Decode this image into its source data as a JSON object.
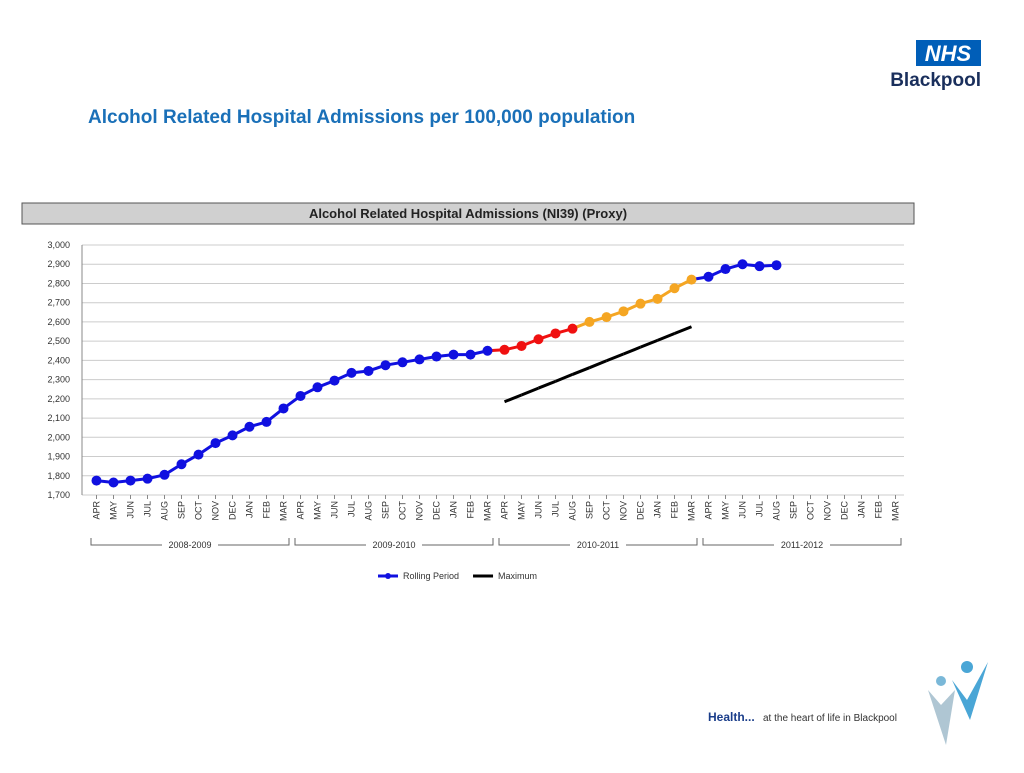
{
  "header": {
    "title": "Alcohol Related Hospital Admissions per 100,000 population",
    "logo": "NHS",
    "logo_sub": "Blackpool"
  },
  "footer": {
    "lead": "Health...",
    "text": "at the heart of life in Blackpool"
  },
  "chart_data": {
    "type": "line",
    "title": "Alcohol Related Hospital Admissions (NI39) (Proxy)",
    "categories": [
      "APR",
      "MAY",
      "JUN",
      "JUL",
      "AUG",
      "SEP",
      "OCT",
      "NOV",
      "DEC",
      "JAN",
      "FEB",
      "MAR",
      "APR",
      "MAY",
      "JUN",
      "JUL",
      "AUG",
      "SEP",
      "OCT",
      "NOV",
      "DEC",
      "JAN",
      "FEB",
      "MAR",
      "APR",
      "MAY",
      "JUN",
      "JUL",
      "AUG",
      "SEP",
      "OCT",
      "NOV",
      "DEC",
      "JAN",
      "FEB",
      "MAR",
      "APR",
      "MAY",
      "JUN",
      "JUL",
      "AUG",
      "SEP",
      "OCT",
      "NOV",
      "DEC",
      "JAN",
      "FEB",
      "MAR"
    ],
    "groups": [
      "2008-2009",
      "2009-2010",
      "2010-2011",
      "2011-2012"
    ],
    "series": [
      {
        "name": "Rolling Period",
        "color": "#1010e0",
        "values": [
          1775,
          1765,
          1775,
          1785,
          1805,
          1860,
          1910,
          1970,
          2010,
          2055,
          2080,
          2150,
          2215,
          2260,
          2295,
          2335,
          2345,
          2375,
          2390,
          2405,
          2420,
          2430,
          2430,
          2450,
          2455,
          2475,
          2510,
          2540,
          2565,
          2600,
          2625,
          2655,
          2695,
          2720,
          2775,
          2820,
          2835,
          2875,
          2900,
          2890,
          2895,
          null,
          null,
          null,
          null,
          null,
          null,
          null
        ],
        "point_colors": [
          "#1010e0",
          "#1010e0",
          "#1010e0",
          "#1010e0",
          "#1010e0",
          "#1010e0",
          "#1010e0",
          "#1010e0",
          "#1010e0",
          "#1010e0",
          "#1010e0",
          "#1010e0",
          "#1010e0",
          "#1010e0",
          "#1010e0",
          "#1010e0",
          "#1010e0",
          "#1010e0",
          "#1010e0",
          "#1010e0",
          "#1010e0",
          "#1010e0",
          "#1010e0",
          "#1010e0",
          "#f01010",
          "#f01010",
          "#f01010",
          "#f01010",
          "#f01010",
          "#f5a623",
          "#f5a623",
          "#f5a623",
          "#f5a623",
          "#f5a623",
          "#f5a623",
          "#f5a623",
          "#1010e0",
          "#1010e0",
          "#1010e0",
          "#1010e0",
          "#1010e0",
          null,
          null,
          null,
          null,
          null,
          null,
          null
        ]
      },
      {
        "name": "Maximum",
        "color": "#000000",
        "values": [
          null,
          null,
          null,
          null,
          null,
          null,
          null,
          null,
          null,
          null,
          null,
          null,
          null,
          null,
          null,
          null,
          null,
          null,
          null,
          null,
          null,
          null,
          null,
          null,
          2185,
          2220,
          2256,
          2291,
          2327,
          2362,
          2398,
          2433,
          2469,
          2504,
          2540,
          2575,
          null,
          null,
          null,
          null,
          null,
          null,
          null,
          null,
          null,
          null,
          null,
          null
        ]
      }
    ],
    "ylim": [
      1700,
      3000
    ],
    "yticks": [
      {
        "value": 1700,
        "label": "1,700"
      },
      {
        "value": 1800,
        "label": "1,800"
      },
      {
        "value": 1900,
        "label": "1,900"
      },
      {
        "value": 2000,
        "label": "2,000"
      },
      {
        "value": 2100,
        "label": "2,100"
      },
      {
        "value": 2200,
        "label": "2,200"
      },
      {
        "value": 2300,
        "label": "2,300"
      },
      {
        "value": 2400,
        "label": "2,400"
      },
      {
        "value": 2500,
        "label": "2,500"
      },
      {
        "value": 2600,
        "label": "2,600"
      },
      {
        "value": 2700,
        "label": "2,700"
      },
      {
        "value": 2800,
        "label": "2,800"
      },
      {
        "value": 2900,
        "label": "2,900"
      },
      {
        "value": 3000,
        "label": "3,000"
      }
    ],
    "grid": true
  }
}
